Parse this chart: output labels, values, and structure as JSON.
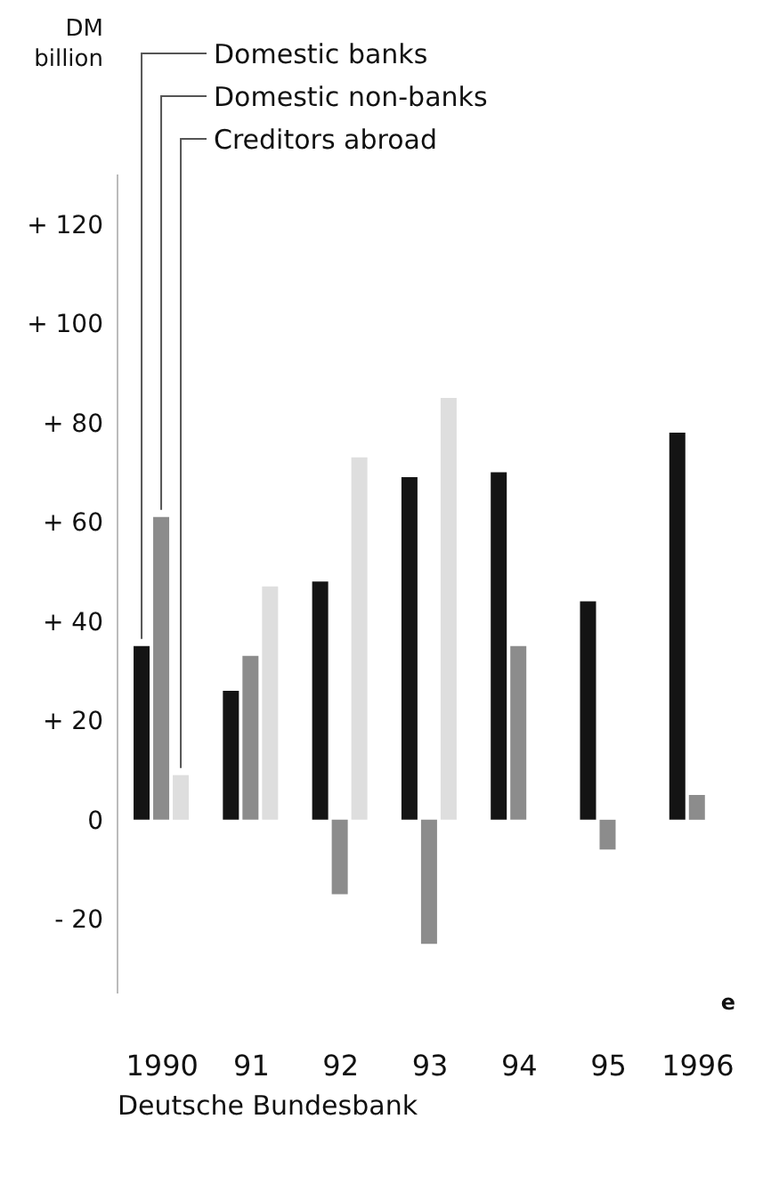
{
  "chart_data": {
    "type": "bar",
    "ylabel": "DM billion",
    "categories": [
      "1990",
      "91",
      "92",
      "93",
      "94",
      "95",
      "1996"
    ],
    "series": [
      {
        "name": "Domestic banks",
        "color": "#141414",
        "values": [
          35,
          26,
          48,
          69,
          70,
          44,
          78
        ]
      },
      {
        "name": "Domestic non-banks",
        "color": "#8c8c8c",
        "values": [
          61,
          33,
          -15,
          -25,
          35,
          -6,
          5
        ]
      },
      {
        "name": "Creditors abroad",
        "color": "#dedede",
        "values": [
          9,
          47,
          73,
          85,
          null,
          null,
          null
        ]
      }
    ],
    "ylim": [
      -35,
      130
    ],
    "yticks": [
      {
        "value": -20,
        "label": "- 20"
      },
      0,
      {
        "value": 20,
        "label": "+ 20"
      },
      {
        "value": 40,
        "label": "+ 40"
      },
      {
        "value": 60,
        "label": "+ 60"
      },
      {
        "value": 80,
        "label": "+ 80"
      },
      {
        "value": 100,
        "label": "+ 100"
      },
      {
        "value": 120,
        "label": "+ 120"
      }
    ],
    "grid": false,
    "legend": "top left",
    "annotations": [
      "e",
      "Deutsche Bundesbank"
    ]
  }
}
